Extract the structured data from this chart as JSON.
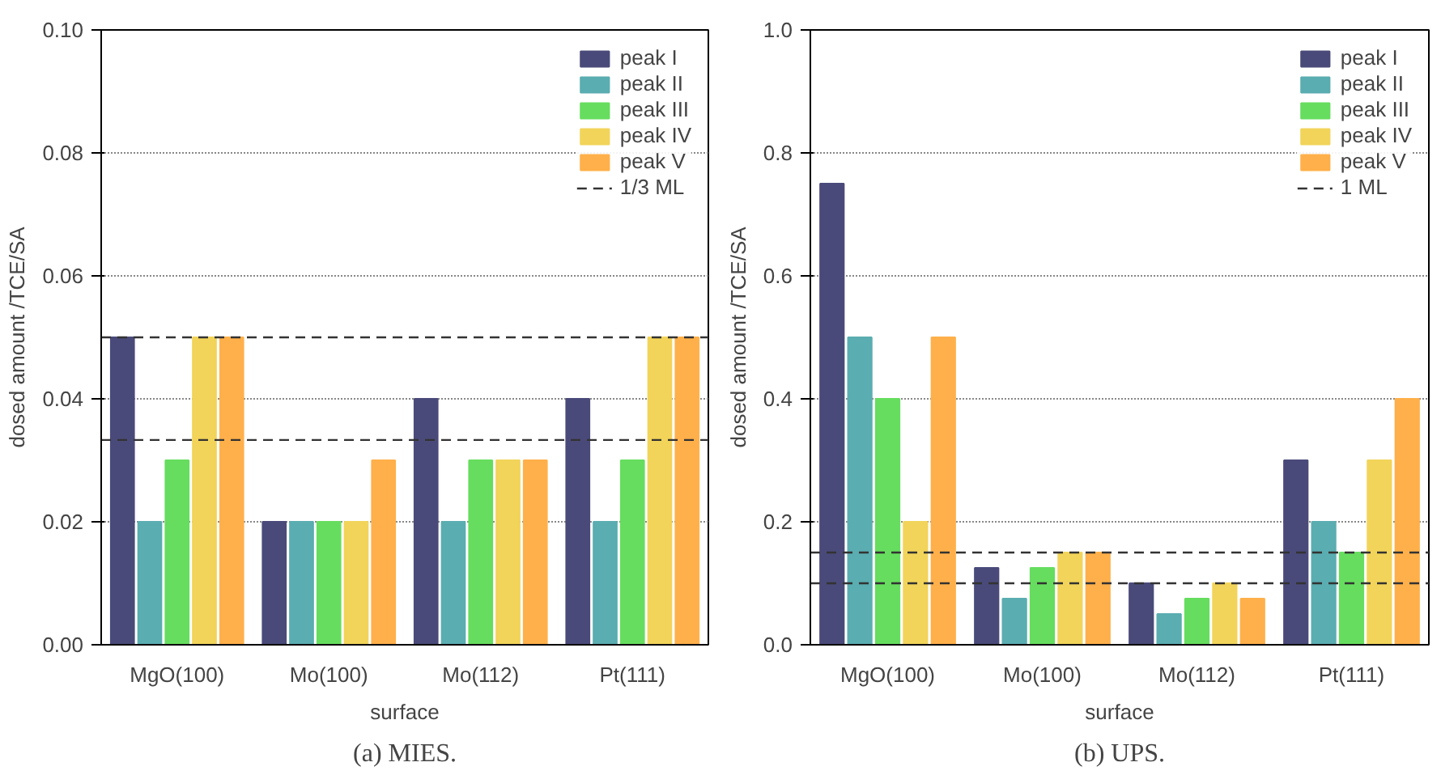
{
  "chart_data": [
    {
      "type": "bar",
      "title": "(a) MIES.",
      "xlabel": "surface",
      "ylabel": "dosed amount /TCE/SA",
      "categories": [
        "MgO(100)",
        "Mo(100)",
        "Mo(112)",
        "Pt(111)"
      ],
      "series": [
        {
          "name": "peak I",
          "color": "#4a4a7a",
          "values": [
            0.05,
            0.02,
            0.04,
            0.04
          ]
        },
        {
          "name": "peak II",
          "color": "#5aadb0",
          "values": [
            0.02,
            0.02,
            0.02,
            0.02
          ]
        },
        {
          "name": "peak III",
          "color": "#66dd5e",
          "values": [
            0.03,
            0.02,
            0.03,
            0.03
          ]
        },
        {
          "name": "peak IV",
          "color": "#f2d45a",
          "values": [
            0.05,
            0.02,
            0.03,
            0.05
          ]
        },
        {
          "name": "peak V",
          "color": "#ffb04a",
          "values": [
            0.05,
            0.03,
            0.03,
            0.05
          ]
        }
      ],
      "ylim": [
        0,
        0.1
      ],
      "yticks": [
        {
          "value": 0,
          "label": "0.00"
        },
        0.02,
        0.04,
        0.06,
        0.08,
        {
          "value": 0.1,
          "label": "0.10"
        }
      ],
      "ref_lines": [
        {
          "axis": "y",
          "value": 0.05,
          "label": "1/3 ML",
          "color": "#333333",
          "line_style": "dashed"
        },
        {
          "axis": "y",
          "value": 0.0333,
          "color": "#333333",
          "line_style": "dashed"
        }
      ],
      "grid": "y",
      "legend": "top right"
    },
    {
      "type": "bar",
      "title": "(b) UPS.",
      "xlabel": "surface",
      "ylabel": "dosed amount /TCE/SA",
      "categories": [
        "MgO(100)",
        "Mo(100)",
        "Mo(112)",
        "Pt(111)"
      ],
      "series": [
        {
          "name": "peak I",
          "color": "#4a4a7a",
          "values": [
            0.75,
            0.125,
            0.1,
            0.3
          ]
        },
        {
          "name": "peak II",
          "color": "#5aadb0",
          "values": [
            0.5,
            0.075,
            0.05,
            0.2
          ]
        },
        {
          "name": "peak III",
          "color": "#66dd5e",
          "values": [
            0.4,
            0.125,
            0.075,
            0.15
          ]
        },
        {
          "name": "peak IV",
          "color": "#f2d45a",
          "values": [
            0.2,
            0.15,
            0.1,
            0.3
          ]
        },
        {
          "name": "peak V",
          "color": "#ffb04a",
          "values": [
            0.5,
            0.15,
            0.075,
            0.4
          ]
        }
      ],
      "ylim": [
        0,
        1.0
      ],
      "yticks": [
        {
          "value": 0,
          "label": "0.0"
        },
        0.2,
        0.4,
        0.6,
        0.8,
        {
          "value": 1.0,
          "label": "1.0"
        }
      ],
      "ref_lines": [
        {
          "axis": "y",
          "value": 0.15,
          "label": "1 ML",
          "color": "#333333",
          "line_style": "dashed"
        },
        {
          "axis": "y",
          "value": 0.1,
          "color": "#333333",
          "line_style": "dashed"
        }
      ],
      "grid": "y",
      "legend": "top right"
    }
  ]
}
